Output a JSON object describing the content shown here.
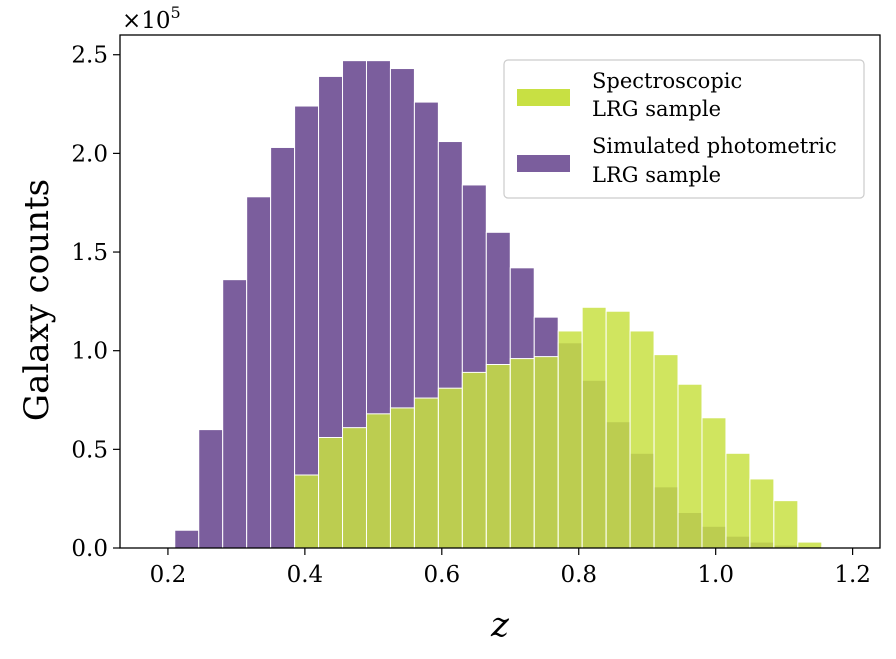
{
  "chart_data": {
    "type": "bar",
    "subtype": "overlaid-histogram",
    "xlabel": "z",
    "ylabel": "Galaxy counts",
    "offset_label": {
      "base": "×10",
      "exponent": "5"
    },
    "xlim": [
      0.13,
      1.24
    ],
    "ylim": [
      0,
      2.6
    ],
    "x_ticks": [
      {
        "value": 0.2,
        "label": "0.2"
      },
      {
        "value": 0.4,
        "label": "0.4"
      },
      {
        "value": 0.6,
        "label": "0.6"
      },
      {
        "value": 0.8,
        "label": "0.8"
      },
      {
        "value": 1.0,
        "label": "1.0"
      },
      {
        "value": 1.2,
        "label": "1.2"
      }
    ],
    "y_ticks": [
      {
        "value": 0.0,
        "label": "0.0"
      },
      {
        "value": 0.5,
        "label": "0.5"
      },
      {
        "value": 1.0,
        "label": "1.0"
      },
      {
        "value": 1.5,
        "label": "1.5"
      },
      {
        "value": 2.0,
        "label": "2.0"
      },
      {
        "value": 2.5,
        "label": "2.5"
      }
    ],
    "bin_width": 0.035,
    "bin_starts": [
      0.21,
      0.245,
      0.28,
      0.315,
      0.35,
      0.385,
      0.42,
      0.455,
      0.49,
      0.525,
      0.56,
      0.595,
      0.63,
      0.665,
      0.7,
      0.735,
      0.77,
      0.805,
      0.84,
      0.875,
      0.91,
      0.945,
      0.98,
      1.015,
      1.05,
      1.085,
      1.12,
      1.155
    ],
    "series": [
      {
        "name": "Simulated photometric LRG sample",
        "legend_lines": [
          "Simulated photometric",
          "LRG sample"
        ],
        "color": "#7b5e9d",
        "values": [
          0.09,
          0.6,
          1.36,
          1.78,
          2.03,
          2.24,
          2.39,
          2.47,
          2.47,
          2.43,
          2.26,
          2.06,
          1.84,
          1.6,
          1.42,
          1.17,
          1.04,
          0.85,
          0.64,
          0.48,
          0.31,
          0.18,
          0.11,
          0.06,
          0.03,
          0.015,
          0.007,
          0.003
        ]
      },
      {
        "name": "Spectroscopic LRG sample",
        "legend_lines": [
          "Spectroscopic",
          "LRG sample"
        ],
        "color": "#c8e043",
        "values": [
          0,
          0,
          0,
          0,
          0,
          0.37,
          0.56,
          0.61,
          0.68,
          0.71,
          0.76,
          0.81,
          0.89,
          0.93,
          0.96,
          0.97,
          1.1,
          1.22,
          1.2,
          1.1,
          0.98,
          0.83,
          0.66,
          0.48,
          0.35,
          0.24,
          0.03,
          0.005
        ]
      }
    ],
    "legend_position": "top-right"
  }
}
